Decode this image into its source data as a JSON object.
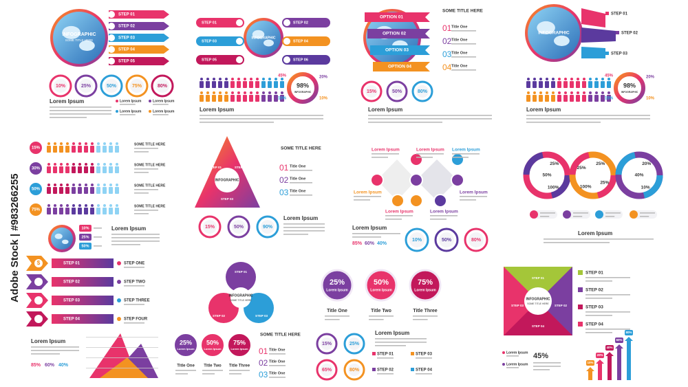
{
  "watermark": "Adobe Stock | #983266255",
  "p1": {
    "title": "INFOGRAPHIC",
    "subtitle": "SOME TITLE HERE",
    "steps": [
      "STEP 01",
      "STEP 02",
      "STEP 03",
      "STEP 04",
      "STEP 05"
    ],
    "percents": [
      "10%",
      "25%",
      "50%",
      "75%",
      "80%"
    ],
    "heading": "Lorem Ipsum",
    "items": [
      "Lorem Ipsum",
      "Lorem Ipsum",
      "Lorem Ipsum",
      "Lorem Ipsum"
    ]
  },
  "p2": {
    "title": "INFOGRAPHIC",
    "steps": [
      "STEP 01",
      "STEP 02",
      "STEP 03",
      "STEP 04",
      "STEP 05",
      "STEP 06"
    ],
    "percents": [
      "45%",
      "20%",
      "15%",
      "10%"
    ],
    "total": "98%",
    "total_label": "INFOGRAPHIC",
    "heading": "Lorem Ipsum"
  },
  "p3": {
    "options": [
      "OPTION 01",
      "OPTION 02",
      "OPTION 03",
      "OPTION 04"
    ],
    "title": "SOME TITLE HERE",
    "numbers": [
      "01",
      "02",
      "03",
      "04"
    ],
    "items": [
      "Title One",
      "Title One",
      "Title One",
      "Title One"
    ],
    "percents": [
      "15%",
      "50%",
      "80%"
    ],
    "heading": "Lorem Ipsum"
  },
  "p4": {
    "title": "INFOGRAPHIC",
    "steps": [
      "STEP 01",
      "STEP 02",
      "STEP 03"
    ],
    "percents": [
      "45%",
      "20%",
      "15%",
      "10%"
    ],
    "total": "98%",
    "total_label": "INFOGRAPHIC",
    "heading": "Lorem Ipsum"
  },
  "p5": {
    "percents": [
      "15%",
      "30%",
      "50%",
      "75%"
    ],
    "titles": [
      "SOME TITLE HERE",
      "SOME TITLE HERE",
      "SOME TITLE HERE",
      "SOME TITLE HERE"
    ],
    "badges": [
      "10%",
      "25%",
      "50%"
    ],
    "heading": "Lorem Ipsum"
  },
  "p6": {
    "title": "INFOGRAPHIC",
    "steps": [
      "STEP 01",
      "STEP 02",
      "STEP 03"
    ],
    "list_title": "SOME TITLE HERE",
    "numbers": [
      "01",
      "02",
      "03"
    ],
    "items": [
      "Title One",
      "Title One",
      "Title One"
    ],
    "percents": [
      "15%",
      "50%",
      "90%"
    ],
    "heading": "Lorem Ipsum"
  },
  "p7": {
    "labels": [
      "Lorem Ipsum",
      "Lorem Ipsum",
      "Lorem Ipsum",
      "Lorem Ipsum",
      "Lorem Ipsum",
      "Lorem Ipsum",
      "Lorem Ipsum"
    ],
    "heading": "Lorem Ipsum",
    "stats": [
      "85%",
      "60%",
      "40%"
    ],
    "percents": [
      "10%",
      "50%",
      "80%"
    ]
  },
  "p8": {
    "rings": [
      [
        "25%",
        "100%",
        "50%"
      ],
      [
        "25%",
        "25%",
        "100%",
        "25%"
      ],
      [
        "20%",
        "10%",
        "40%"
      ]
    ],
    "heading": "Lorem Ipsum"
  },
  "p9": {
    "icon": "$",
    "steps": [
      "STEP 01",
      "STEP 02",
      "STEP 03",
      "STEP 04"
    ],
    "labels": [
      "STEP ONE",
      "STEP TWO",
      "STEP THREE",
      "STEP FOUR"
    ],
    "heading": "Lorem Ipsum",
    "stats": [
      "85%",
      "60%",
      "40%"
    ]
  },
  "p10": {
    "title": "INFOGRAPHIC",
    "subtitle": "SOME TITLE HERE",
    "steps": [
      "STEP 01",
      "STEP 02",
      "STEP 03"
    ],
    "percents": [
      "25%",
      "50%",
      "75%"
    ],
    "percent_labels": [
      "Lorem Ipsum",
      "Lorem Ipsum",
      "Lorem Ipsum"
    ],
    "titles": [
      "Title One",
      "Title Two",
      "Title Three"
    ],
    "list_title": "SOME TITLE HERE",
    "numbers": [
      "01",
      "02",
      "03"
    ],
    "items": [
      "Title One",
      "Title One",
      "Title One"
    ]
  },
  "p11": {
    "percents": [
      "25%",
      "50%",
      "75%"
    ],
    "percent_labels": [
      "Lorem Ipsum",
      "Lorem Ipsum",
      "Lorem Ipsum"
    ],
    "titles": [
      "Title One",
      "Title Two",
      "Title Three"
    ],
    "small": [
      "15%",
      "25%",
      "65%",
      "80%"
    ],
    "heading": "Lorem Ipsum",
    "steps": [
      "STEP 01",
      "STEP 03",
      "STEP 02",
      "STEP 04"
    ]
  },
  "p12": {
    "steps": [
      "STEP 01",
      "STEP 02",
      "STEP 03",
      "STEP 04"
    ],
    "title": "INFOGRAPHIC",
    "subtitle": "SOME TITLE HERE",
    "list": [
      "STEP 01",
      "STEP 02",
      "STEP 03",
      "STEP 04"
    ],
    "items": [
      "Lorem Ipsum",
      "Lorem Ipsum"
    ],
    "stat": "45%",
    "bars": [
      "10%",
      "20%",
      "40%",
      "60%",
      "80%"
    ]
  }
}
